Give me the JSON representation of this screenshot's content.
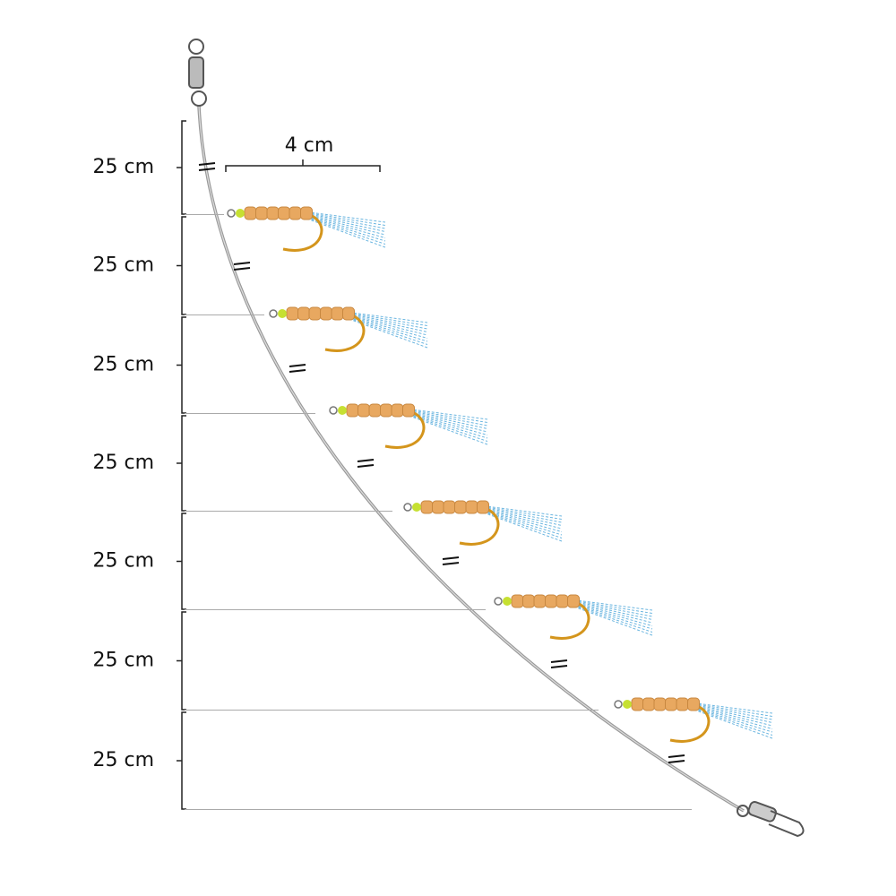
{
  "segments": [
    {
      "label": "25 cm"
    },
    {
      "label": "25 cm"
    },
    {
      "label": "25 cm"
    },
    {
      "label": "25 cm"
    },
    {
      "label": "25 cm"
    },
    {
      "label": "25 cm"
    },
    {
      "label": "25 cm"
    }
  ],
  "spacing_label": "4 cm"
}
